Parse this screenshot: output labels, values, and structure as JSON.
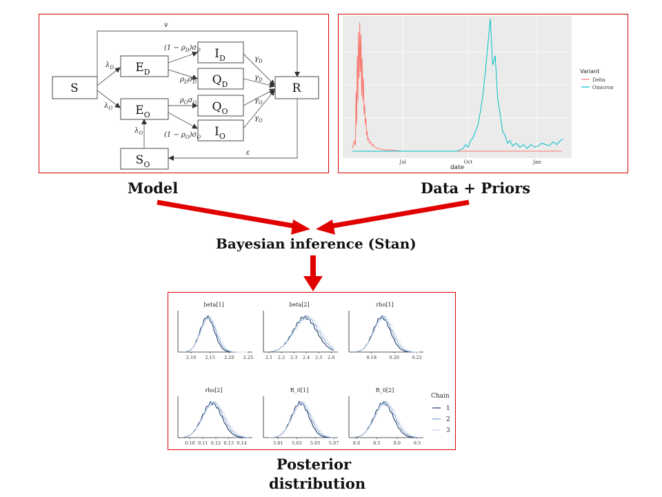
{
  "labels": {
    "model": "Model",
    "data_priors": "Data + Priors",
    "inference": "Bayesian inference (Stan)",
    "posterior_line1": "Posterior",
    "posterior_line2": "distribution"
  },
  "model_diagram": {
    "nodes": {
      "S": "S",
      "ED": "E",
      "ED_sub": "D",
      "EO": "E",
      "EO_sub": "O",
      "ID": "I",
      "ID_sub": "D",
      "QD": "Q",
      "QD_sub": "D",
      "QO": "Q",
      "QO_sub": "O",
      "IO": "I",
      "IO_sub": "O",
      "R": "R",
      "SO": "S",
      "SO_sub": "O"
    },
    "edge_labels": {
      "v": "v",
      "lambda_D": "λ",
      "lambda_D_sub": "D",
      "lambda_O": "λ",
      "lambda_O_sub": "O",
      "lambda_O2": "λ",
      "lambda_O2_sub": "O",
      "ED_ID": "(1 − ρ",
      "ED_ID_mid": ")σ",
      "ED_QD": "ρ",
      "ED_QD_mid": "σ",
      "EO_QO": "ρ",
      "EO_QO_mid": "σ",
      "EO_IO": "(1 − ρ",
      "EO_IO_mid": ")σ",
      "sub_D": "D",
      "sub_O": "O",
      "gamma_ID": "γ",
      "gamma_QD": "γ",
      "gamma_QO": "γ",
      "gamma_IO": "γ",
      "epsilon": "ε"
    }
  },
  "chart_data": [
    {
      "type": "line",
      "title": "",
      "xlabel": "date",
      "ylabel": "",
      "x_ticks": [
        "Jul",
        "Oct",
        "Jan"
      ],
      "legend_title": "Variant",
      "legend_position": "right",
      "series": [
        {
          "name": "Delta",
          "color": "#f8766d",
          "x": [
            0,
            3,
            5,
            6,
            7,
            8,
            9,
            10,
            11,
            12,
            13,
            14,
            15,
            16,
            17,
            18,
            19,
            20,
            21,
            22,
            23,
            24,
            25,
            26,
            28,
            30,
            32,
            34,
            36,
            38,
            40,
            44,
            50,
            60,
            80,
            120,
            180,
            240,
            300,
            340
          ],
          "values": [
            0.02,
            0.08,
            0.04,
            0.45,
            0.2,
            0.72,
            0.38,
            0.9,
            0.55,
            0.97,
            0.6,
            0.88,
            0.42,
            0.7,
            0.38,
            0.55,
            0.28,
            0.35,
            0.2,
            0.25,
            0.12,
            0.15,
            0.08,
            0.1,
            0.06,
            0.07,
            0.04,
            0.05,
            0.03,
            0.03,
            0.02,
            0.02,
            0.01,
            0.01,
            0.0,
            0.0,
            0.0,
            0.0,
            0.0,
            0.0
          ]
        },
        {
          "name": "Omicron",
          "color": "#00bfc4",
          "x": [
            0,
            100,
            150,
            170,
            175,
            180,
            184,
            188,
            192,
            196,
            200,
            204,
            208,
            212,
            216,
            220,
            224,
            228,
            232,
            236,
            240,
            244,
            248,
            252,
            256,
            260,
            266,
            272,
            278,
            284,
            290,
            296,
            302,
            308,
            314,
            320,
            326,
            332,
            338,
            342
          ],
          "values": [
            0.0,
            0.0,
            0.0,
            0.0,
            0.01,
            0.02,
            0.05,
            0.03,
            0.08,
            0.1,
            0.15,
            0.2,
            0.3,
            0.42,
            0.6,
            0.8,
            1.0,
            0.65,
            0.72,
            0.4,
            0.28,
            0.15,
            0.12,
            0.06,
            0.08,
            0.04,
            0.06,
            0.03,
            0.05,
            0.02,
            0.05,
            0.03,
            0.04,
            0.06,
            0.05,
            0.04,
            0.07,
            0.05,
            0.08,
            0.09
          ]
        }
      ]
    },
    {
      "type": "line",
      "title": "",
      "legend_title": "Chain",
      "legend_position": "right",
      "legend": [
        "1",
        "2",
        "3"
      ],
      "panels": [
        {
          "title": "beta[1]",
          "ticks": [
            "2.10",
            "2.15",
            "2.20",
            "2.25"
          ],
          "xlim": [
            2.08,
            2.25
          ],
          "mean": 2.145,
          "sd": 0.02
        },
        {
          "title": "beta[2]",
          "ticks": [
            "2.1",
            "2.2",
            "2.3",
            "2.4",
            "2.5",
            "2.6"
          ],
          "xlim": [
            2.1,
            2.62
          ],
          "mean": 2.4,
          "sd": 0.1
        },
        {
          "title": "rho[1]",
          "ticks": [
            "0.18",
            "0.20",
            "0.22"
          ],
          "xlim": [
            0.165,
            0.222
          ],
          "mean": 0.19,
          "sd": 0.008
        },
        {
          "title": "rho[2]",
          "ticks": [
            "0.10",
            "0.11",
            "0.12",
            "0.13",
            "0.14"
          ],
          "xlim": [
            0.095,
            0.145
          ],
          "mean": 0.118,
          "sd": 0.008
        },
        {
          "title": "R_0[1]",
          "ticks": [
            "5.01",
            "5.03",
            "5.05",
            "5.07"
          ],
          "xlim": [
            5.0,
            5.07
          ],
          "mean": 5.035,
          "sd": 0.01
        },
        {
          "title": "R_0[2]",
          "ticks": [
            "8.0",
            "8.5",
            "9.0",
            "9.5"
          ],
          "xlim": [
            7.95,
            9.55
          ],
          "mean": 8.7,
          "sd": 0.25
        }
      ]
    }
  ]
}
